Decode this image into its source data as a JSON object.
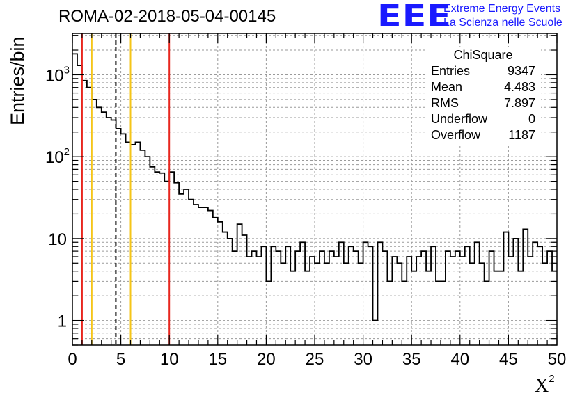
{
  "title": "ROMA-02-2018-05-04-00145",
  "logo": {
    "mark": "EEE",
    "line1": "Extreme Energy Events",
    "line2": "La Scienza nelle Scuole",
    "color": "#1a1aff"
  },
  "stats_box": {
    "title": "ChiSquare",
    "rows": [
      {
        "label": "Entries",
        "value": "9347"
      },
      {
        "label": "Mean",
        "value": "4.483"
      },
      {
        "label": "RMS",
        "value": "7.897"
      },
      {
        "label": "Underflow",
        "value": "0"
      },
      {
        "label": "Overflow",
        "value": "1187"
      }
    ]
  },
  "chart_data": {
    "type": "histogram",
    "title": "ROMA-02-2018-05-04-00145",
    "xlabel": "X",
    "xlabel_sup": "2",
    "ylabel": "Entries/bin",
    "xlim": [
      0,
      50
    ],
    "ylim": [
      0.5,
      3200
    ],
    "yscale": "log",
    "grid": true,
    "bin_width": 0.5,
    "x_ticks": [
      0,
      5,
      10,
      15,
      20,
      25,
      30,
      35,
      40,
      45,
      50
    ],
    "y_ticks": [
      {
        "value": 1,
        "label": "1"
      },
      {
        "value": 10,
        "label": "10"
      },
      {
        "value": 100,
        "label": "10",
        "exp": "2"
      },
      {
        "value": 1000,
        "label": "10",
        "exp": "3"
      }
    ],
    "values": [
      1800,
      1300,
      850,
      700,
      500,
      400,
      350,
      300,
      280,
      220,
      190,
      150,
      140,
      150,
      120,
      100,
      75,
      65,
      63,
      50,
      65,
      48,
      35,
      40,
      30,
      26,
      24,
      24,
      22,
      18,
      16,
      12,
      10,
      7,
      15,
      11,
      6,
      7,
      6,
      8,
      3,
      8,
      7,
      5,
      8,
      4,
      7,
      9,
      4,
      6,
      5,
      7,
      5,
      7,
      6,
      9,
      5,
      8,
      7,
      5,
      9,
      8,
      1,
      9,
      7,
      3,
      6,
      5,
      3,
      6,
      4,
      6,
      7,
      4,
      8,
      3,
      3,
      7,
      6,
      7,
      6,
      8,
      5,
      9,
      5,
      3,
      7,
      4,
      4,
      12,
      6,
      10,
      4,
      13,
      6,
      9,
      8,
      5,
      7,
      4
    ],
    "vertical_lines": [
      {
        "x": 1,
        "color": "#e8261e",
        "style": "solid"
      },
      {
        "x": 2,
        "color": "#f5c518",
        "style": "solid"
      },
      {
        "x": 4.483,
        "color": "#000000",
        "style": "dashed"
      },
      {
        "x": 6,
        "color": "#f5c518",
        "style": "solid"
      },
      {
        "x": 10,
        "color": "#e8261e",
        "style": "solid"
      }
    ]
  }
}
